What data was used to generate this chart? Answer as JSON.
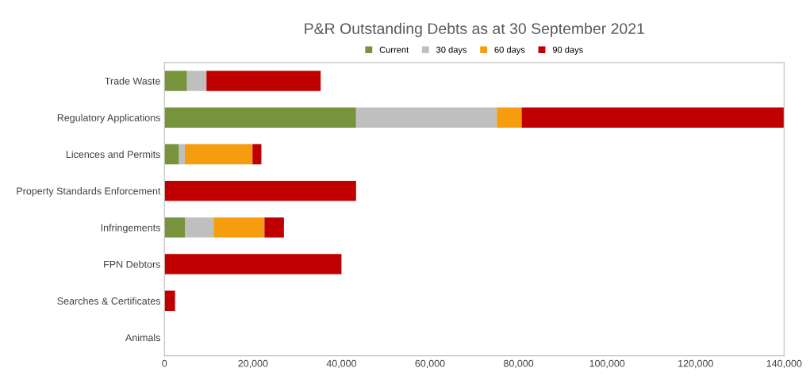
{
  "chart_data": {
    "type": "bar",
    "orientation": "horizontal",
    "stacked": true,
    "title": "P&R Outstanding Debts as at 30 September 2021",
    "categories": [
      "Trade Waste",
      "Regulatory Applications",
      "Licences and Permits",
      "Property Standards Enforcement",
      "Infringements",
      "FPN Debtors",
      "Searches & Certificates",
      "Animals"
    ],
    "series": [
      {
        "name": "Current",
        "color": "#77933c",
        "values": [
          5100,
          43300,
          3300,
          0,
          4700,
          0,
          0,
          0
        ]
      },
      {
        "name": "30 days",
        "color": "#bfbfbf",
        "values": [
          4400,
          31800,
          1300,
          0,
          6400,
          0,
          0,
          0
        ]
      },
      {
        "name": "60 days",
        "color": "#f59d0e",
        "values": [
          0,
          5600,
          15300,
          0,
          11500,
          0,
          0,
          0
        ]
      },
      {
        "name": "90 days",
        "color": "#c00000",
        "values": [
          25800,
          59300,
          2000,
          43300,
          4400,
          40000,
          2400,
          0
        ]
      }
    ],
    "xlim": [
      0,
      140000
    ],
    "xticks": [
      0,
      {
        "value": 20000,
        "label": "20,000"
      },
      {
        "value": 40000,
        "label": "40,000"
      },
      {
        "value": 60000,
        "label": "60,000"
      },
      {
        "value": 80000,
        "label": "80,000"
      },
      {
        "value": 100000,
        "label": "100,000"
      },
      {
        "value": 120000,
        "label": "120,000"
      },
      {
        "value": 140000,
        "label": "140,000"
      }
    ],
    "legend": "top",
    "grid": false
  }
}
